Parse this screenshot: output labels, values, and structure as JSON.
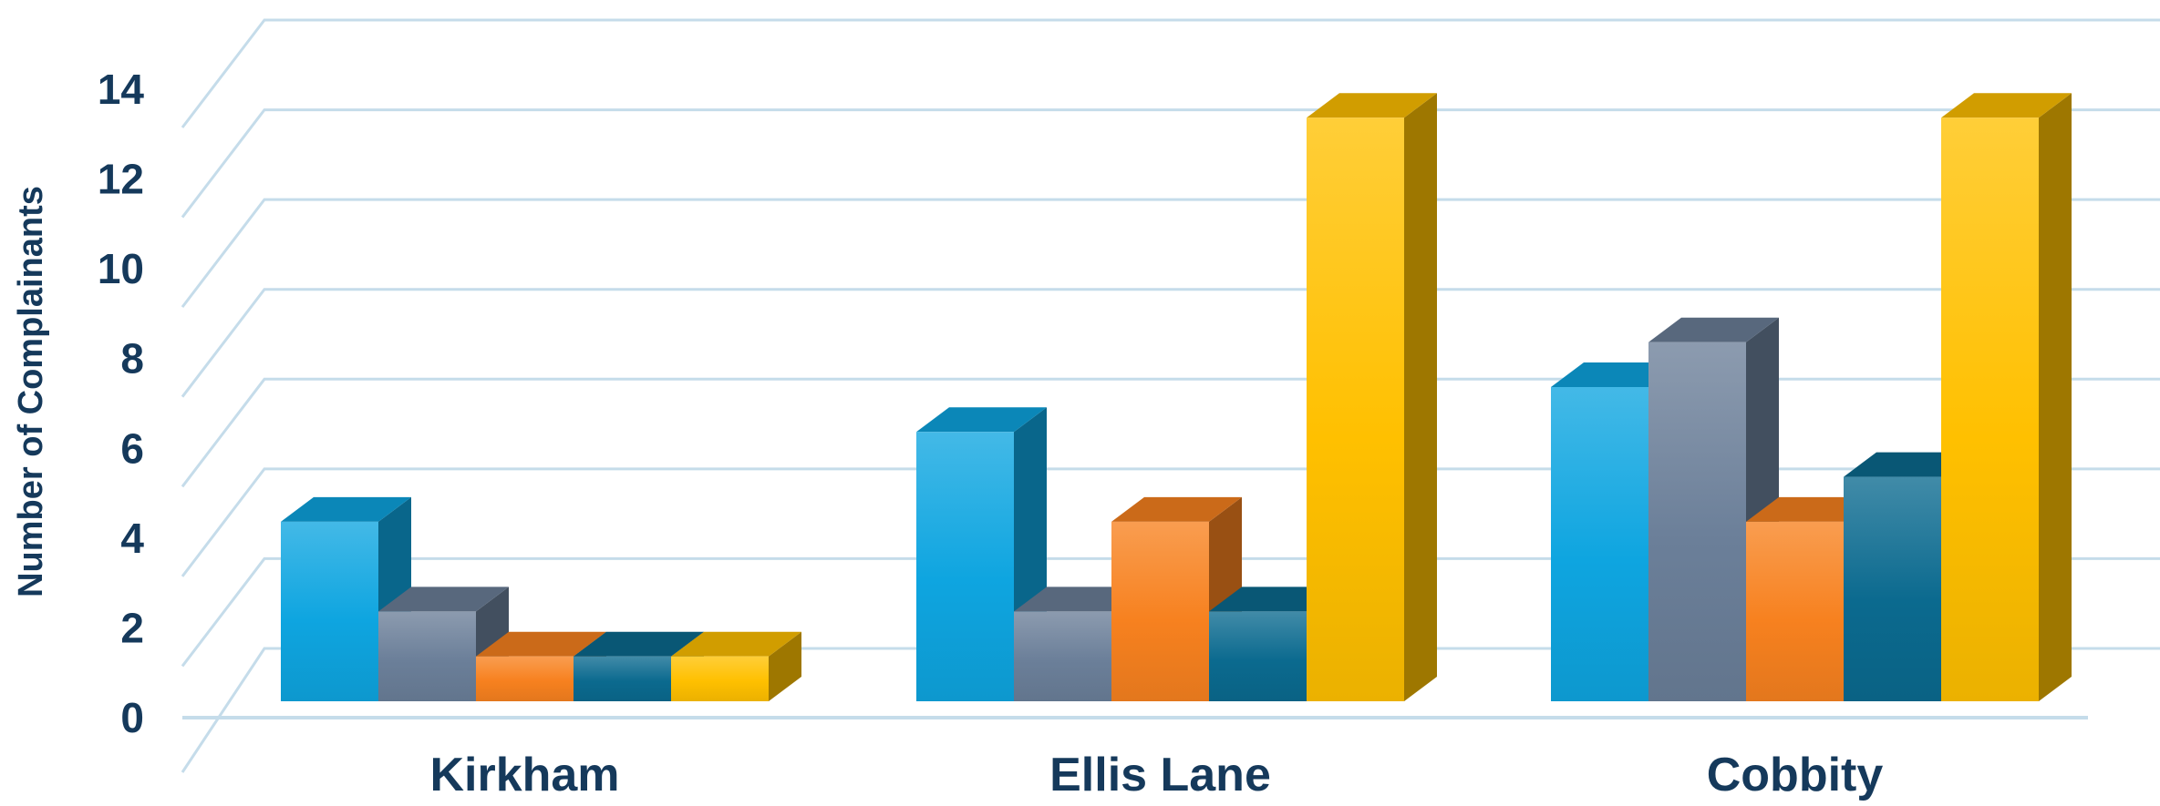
{
  "chart_data": {
    "type": "bar",
    "style": "3d-clustered-column",
    "title": "",
    "xlabel": "",
    "ylabel": "Number of Complainants",
    "ylim": [
      0,
      14
    ],
    "yticks": [
      "0",
      "2",
      "4",
      "6",
      "8",
      "10",
      "12",
      "14"
    ],
    "grid": true,
    "legend": "none",
    "categories": [
      "Kirkham",
      "Ellis Lane",
      "Cobbity"
    ],
    "series": [
      {
        "values": [
          4,
          6,
          7
        ],
        "color": "#0ea5e0"
      },
      {
        "values": [
          2,
          2,
          8
        ],
        "color": "#6b7f99"
      },
      {
        "values": [
          1,
          4,
          4
        ],
        "color": "#f7811f"
      },
      {
        "values": [
          1,
          2,
          5
        ],
        "color": "#0b6a8f"
      },
      {
        "values": [
          1,
          13,
          13
        ],
        "color": "#ffc000"
      }
    ]
  }
}
